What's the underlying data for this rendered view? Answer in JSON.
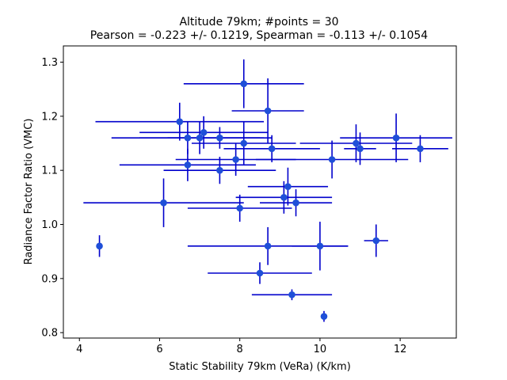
{
  "chart_data": {
    "type": "scatter",
    "title": "Altitude 79km;  #points = 30",
    "subtitle": "Pearson = -0.223 +/-  0.1219, Spearman = -0.113 +/-  0.1054",
    "xlabel": "Static Stability 79km (VeRa) (K/km)",
    "ylabel": "Radiance Factor Ratio (VMC)",
    "xlim": [
      3.6,
      13.4
    ],
    "ylim": [
      0.79,
      1.33
    ],
    "xticks": [
      4,
      6,
      8,
      10,
      12
    ],
    "yticks": [
      0.8,
      0.9,
      1.0,
      1.1,
      1.2,
      1.3
    ],
    "xtick_labels": [
      "4",
      "6",
      "8",
      "10",
      "12"
    ],
    "ytick_labels": [
      "0.8",
      "0.9",
      "1.0",
      "1.1",
      "1.2",
      "1.3"
    ],
    "grid": false,
    "legend": "none",
    "marker_color": "#1f4fd8",
    "errorbar_color": "#0000cc",
    "points": [
      {
        "x": 4.5,
        "y": 0.96,
        "xerr": 0.0,
        "yerr": 0.02
      },
      {
        "x": 6.1,
        "y": 1.04,
        "xerr": 2.0,
        "yerr": 0.045
      },
      {
        "x": 6.5,
        "y": 1.19,
        "xerr": 2.1,
        "yerr": 0.035
      },
      {
        "x": 6.7,
        "y": 1.16,
        "xerr": 1.9,
        "yerr": 0.03
      },
      {
        "x": 6.7,
        "y": 1.11,
        "xerr": 1.7,
        "yerr": 0.03
      },
      {
        "x": 7.0,
        "y": 1.16,
        "xerr": 1.5,
        "yerr": 0.03
      },
      {
        "x": 7.1,
        "y": 1.17,
        "xerr": 1.6,
        "yerr": 0.03
      },
      {
        "x": 7.5,
        "y": 1.16,
        "xerr": 1.3,
        "yerr": 0.02
      },
      {
        "x": 7.5,
        "y": 1.1,
        "xerr": 1.4,
        "yerr": 0.025
      },
      {
        "x": 7.9,
        "y": 1.12,
        "xerr": 1.5,
        "yerr": 0.03
      },
      {
        "x": 8.0,
        "y": 1.03,
        "xerr": 1.3,
        "yerr": 0.025
      },
      {
        "x": 8.1,
        "y": 1.15,
        "xerr": 1.3,
        "yerr": 0.04
      },
      {
        "x": 8.1,
        "y": 1.26,
        "xerr": 1.5,
        "yerr": 0.045
      },
      {
        "x": 8.5,
        "y": 0.91,
        "xerr": 1.3,
        "yerr": 0.02
      },
      {
        "x": 8.7,
        "y": 1.21,
        "xerr": 0.9,
        "yerr": 0.06
      },
      {
        "x": 8.7,
        "y": 0.96,
        "xerr": 2.0,
        "yerr": 0.035
      },
      {
        "x": 8.8,
        "y": 1.14,
        "xerr": 1.2,
        "yerr": 0.025
      },
      {
        "x": 9.1,
        "y": 1.05,
        "xerr": 1.2,
        "yerr": 0.03
      },
      {
        "x": 9.2,
        "y": 1.07,
        "xerr": 1.0,
        "yerr": 0.035
      },
      {
        "x": 9.3,
        "y": 0.87,
        "xerr": 1.0,
        "yerr": 0.01
      },
      {
        "x": 9.4,
        "y": 1.04,
        "xerr": 0.9,
        "yerr": 0.025
      },
      {
        "x": 10.0,
        "y": 0.96,
        "xerr": 0.7,
        "yerr": 0.045
      },
      {
        "x": 10.1,
        "y": 0.83,
        "xerr": 0.0,
        "yerr": 0.01
      },
      {
        "x": 10.3,
        "y": 1.12,
        "xerr": 1.9,
        "yerr": 0.035
      },
      {
        "x": 10.9,
        "y": 1.15,
        "xerr": 1.4,
        "yerr": 0.035
      },
      {
        "x": 11.0,
        "y": 1.14,
        "xerr": 0.4,
        "yerr": 0.03
      },
      {
        "x": 11.4,
        "y": 0.97,
        "xerr": 0.3,
        "yerr": 0.03
      },
      {
        "x": 11.9,
        "y": 1.16,
        "xerr": 1.4,
        "yerr": 0.045
      },
      {
        "x": 12.5,
        "y": 1.14,
        "xerr": 0.7,
        "yerr": 0.025
      },
      {
        "x": 10.1,
        "y": 1.1,
        "xerr": 0.0,
        "yerr": 0.0
      }
    ]
  }
}
